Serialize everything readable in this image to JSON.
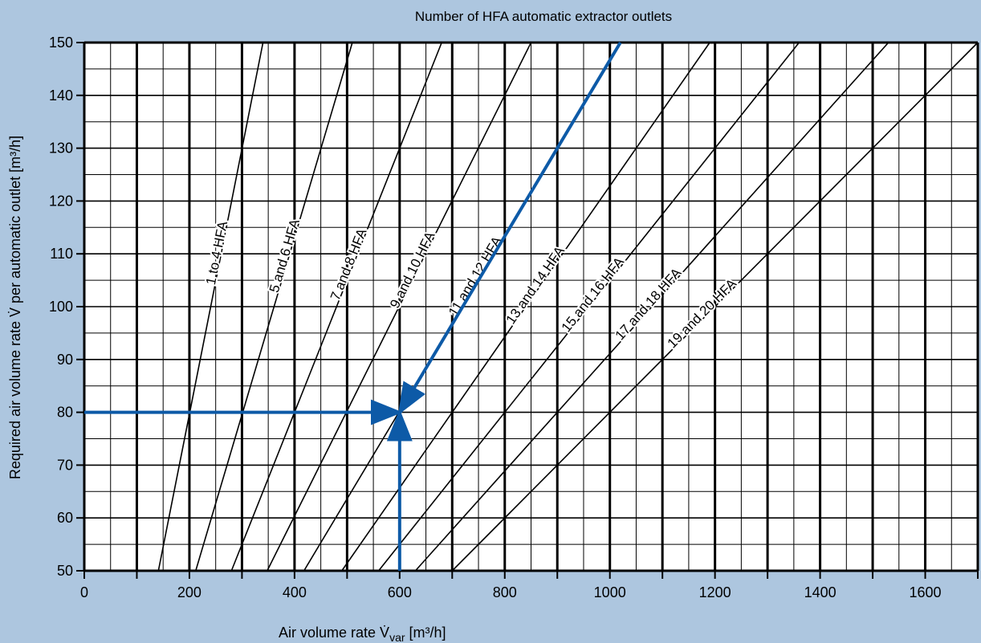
{
  "chart_data": {
    "type": "line",
    "title": "Number of HFA automatic extractor outlets",
    "xlabel": "Air volume rate V̇",
    "xlabel_sub": "var",
    "xlabel_unit": " [m³/h]",
    "ylabel": "Required air volume rate V̇ per automatic outlet [m³/h]",
    "xlim": [
      0,
      1700
    ],
    "ylim": [
      50,
      150
    ],
    "x_ticks": [
      0,
      200,
      400,
      600,
      800,
      1000,
      1200,
      1400,
      1600
    ],
    "y_ticks": [
      50,
      60,
      70,
      80,
      90,
      100,
      110,
      120,
      130,
      140,
      150
    ],
    "grid": true,
    "series": [
      {
        "name": "1 to 4 HFA",
        "x": [
          141,
          340
        ],
        "y": [
          50,
          150
        ]
      },
      {
        "name": "5 and 6 HFA",
        "x": [
          212,
          510
        ],
        "y": [
          50,
          150
        ]
      },
      {
        "name": "7 and 8 HFA",
        "x": [
          280,
          680
        ],
        "y": [
          50,
          150
        ]
      },
      {
        "name": "9 and 10 HFA",
        "x": [
          348,
          850
        ],
        "y": [
          50,
          150
        ]
      },
      {
        "name": "11 and 12 HFA",
        "x": [
          418,
          1020
        ],
        "y": [
          50,
          150
        ]
      },
      {
        "name": "13 and 14 HFA",
        "x": [
          490,
          1190
        ],
        "y": [
          50,
          150
        ]
      },
      {
        "name": "15 and 16 HFA",
        "x": [
          560,
          1360
        ],
        "y": [
          50,
          150
        ]
      },
      {
        "name": "17 and 18 HFA",
        "x": [
          630,
          1530
        ],
        "y": [
          50,
          150
        ]
      },
      {
        "name": "19 and 20 HFA",
        "x": [
          700,
          1700
        ],
        "y": [
          50,
          150
        ]
      }
    ],
    "annotations": {
      "color": "#0d5aa7",
      "example_arrows": [
        {
          "from": [
            0,
            80
          ],
          "to": [
            600,
            80
          ]
        },
        {
          "from": [
            600,
            50
          ],
          "to": [
            600,
            80
          ]
        },
        {
          "from": [
            1020,
            150
          ],
          "to": [
            600,
            80
          ]
        }
      ]
    }
  }
}
